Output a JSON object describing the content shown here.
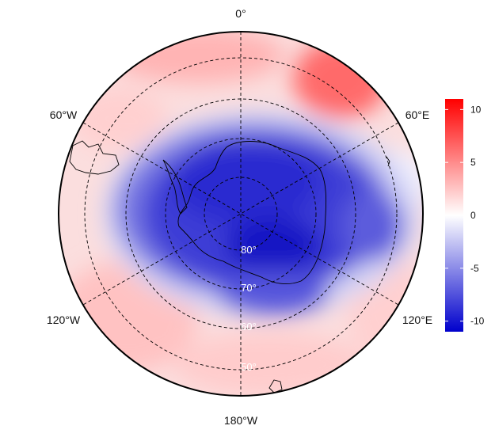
{
  "map": {
    "projection": "south-polar-stereographic",
    "colors": {
      "positive": "#ff0000",
      "neutral": "#ffffff",
      "negative": "#0000cc"
    },
    "longitude_labels": {
      "top": "0°",
      "upper_left": "60°W",
      "upper_right": "60°E",
      "lower_left": "120°W",
      "lower_right": "120°E",
      "bottom": "180°W"
    },
    "latitude_labels": [
      "80°",
      "70°",
      "60°",
      "50°"
    ]
  },
  "colorbar": {
    "min": -11,
    "max": 11,
    "ticks": [
      "10",
      "5",
      "0",
      "-5",
      "-10"
    ]
  }
}
